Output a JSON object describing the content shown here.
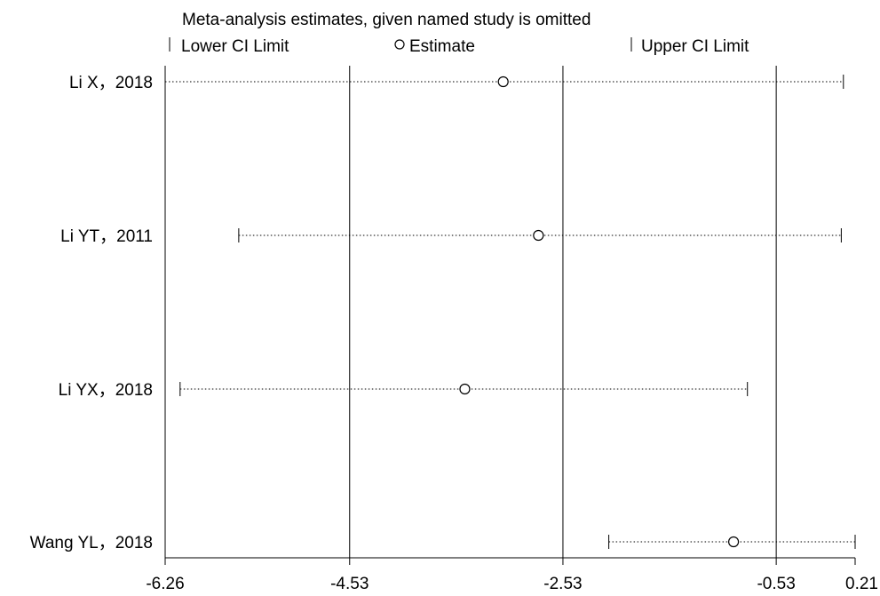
{
  "chart_data": {
    "type": "scatter",
    "title": "Meta-analysis estimates, given named study is omitted",
    "legend": {
      "placement": "top",
      "entries": [
        "Lower CI Limit",
        "Estimate",
        "Upper CI Limit"
      ]
    },
    "xlim": [
      -6.26,
      0.21
    ],
    "xticks": [
      {
        "value": -6.26,
        "label": "-6.26"
      },
      {
        "value": -4.53,
        "label": "-4.53"
      },
      {
        "value": -2.53,
        "label": "-2.53"
      },
      {
        "value": -0.53,
        "label": "-0.53"
      },
      {
        "value": 0.21,
        "label": "0.21"
      }
    ],
    "reference_lines": [
      -4.53,
      -2.53,
      -0.53
    ],
    "studies": [
      {
        "label": "Li X，2018",
        "lower": -6.26,
        "estimate": -3.09,
        "upper": 0.1
      },
      {
        "label": "Li YT，2011",
        "lower": -5.57,
        "estimate": -2.76,
        "upper": 0.08
      },
      {
        "label": "Li YX，2018",
        "lower": -6.12,
        "estimate": -3.45,
        "upper": -0.8
      },
      {
        "label": "Wang YL，2018",
        "lower": -2.1,
        "estimate": -0.93,
        "upper": 0.21
      }
    ]
  }
}
